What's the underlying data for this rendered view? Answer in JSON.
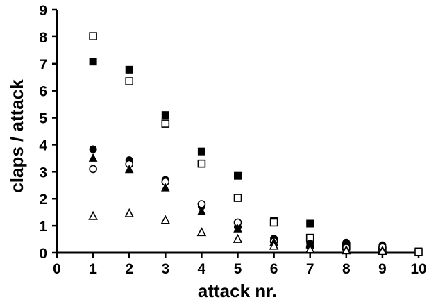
{
  "chart_data": {
    "type": "scatter",
    "title": "",
    "xlabel": "attack nr.",
    "ylabel": "claps / attack",
    "xlim": [
      0,
      10
    ],
    "ylim": [
      0,
      9
    ],
    "xticks": [
      0,
      1,
      2,
      3,
      4,
      5,
      6,
      7,
      8,
      9,
      10
    ],
    "yticks": [
      0,
      1,
      2,
      3,
      4,
      5,
      6,
      7,
      8,
      9
    ],
    "grid": false,
    "legend": "none",
    "series": [
      {
        "marker": "square-filled",
        "color": "#000000",
        "x": [
          1,
          2,
          3,
          4,
          5,
          6,
          7,
          8,
          9,
          10
        ],
        "y": [
          7.08,
          6.78,
          5.1,
          3.75,
          2.85,
          1.18,
          1.08,
          0.2,
          0.1,
          0.05
        ]
      },
      {
        "marker": "square-open",
        "color": "#000000",
        "x": [
          1,
          2,
          3,
          4,
          5,
          6,
          7,
          8,
          9,
          10
        ],
        "y": [
          8.02,
          6.35,
          4.78,
          3.3,
          2.03,
          1.12,
          0.55,
          0.25,
          0.05,
          0.02
        ]
      },
      {
        "marker": "circle-filled",
        "color": "#000000",
        "x": [
          1,
          2,
          3,
          4,
          5,
          6,
          7,
          8,
          9
        ],
        "y": [
          3.83,
          3.43,
          2.7,
          1.72,
          0.95,
          0.52,
          0.35,
          0.38,
          0.28
        ]
      },
      {
        "marker": "circle-open",
        "color": "#000000",
        "x": [
          1,
          2,
          3,
          4,
          5,
          6,
          7,
          8,
          9
        ],
        "y": [
          3.1,
          3.28,
          2.63,
          1.8,
          1.12,
          0.42,
          0.22,
          0.18,
          0.2
        ]
      },
      {
        "marker": "triangle-filled",
        "color": "#000000",
        "x": [
          1,
          2,
          3,
          4,
          5,
          6,
          7,
          8,
          9
        ],
        "y": [
          3.5,
          3.08,
          2.4,
          1.52,
          0.88,
          0.38,
          0.3,
          0.1,
          0.08
        ]
      },
      {
        "marker": "triangle-open",
        "color": "#000000",
        "x": [
          1,
          2,
          3,
          4,
          5,
          6,
          7,
          8,
          9
        ],
        "y": [
          1.35,
          1.45,
          1.2,
          0.75,
          0.5,
          0.25,
          0.12,
          0.08,
          0.05
        ]
      }
    ]
  }
}
